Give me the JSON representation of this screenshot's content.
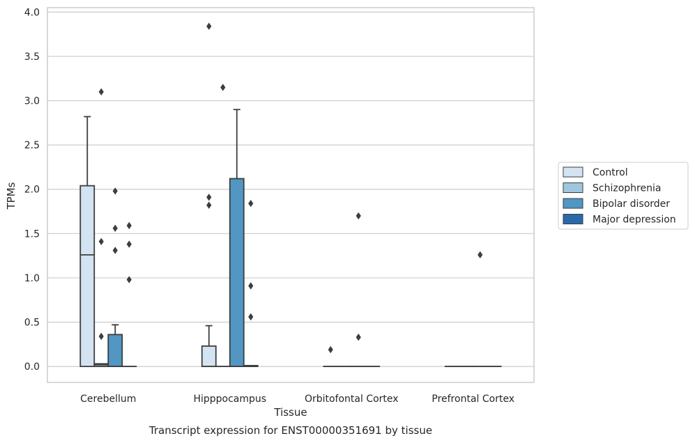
{
  "chart_data": {
    "type": "box",
    "xlabel": "Tissue",
    "ylabel": "TPMs",
    "caption": "Transcript expression for ENST00000351691 by tissue",
    "ylim": [
      -0.18,
      4.05
    ],
    "yticks": [
      0.0,
      0.5,
      1.0,
      1.5,
      2.0,
      2.5,
      3.0,
      3.5,
      4.0
    ],
    "ytick_labels": [
      "0.0",
      "0.5",
      "1.0",
      "1.5",
      "2.0",
      "2.5",
      "3.0",
      "3.5",
      "4.0"
    ],
    "grid": "y",
    "legend_position": "right",
    "categories": [
      "Cerebellum",
      "Hipppocampus",
      "Orbitofontal Cortex",
      "Prefrontal Cortex"
    ],
    "series": [
      {
        "name": "Control",
        "color": "#d3e3f2",
        "boxes": [
          {
            "q1": 0.0,
            "median": 1.26,
            "q3": 2.04,
            "whisker_low": 0.0,
            "whisker_high": 2.82,
            "outliers": []
          },
          {
            "q1": 0.0,
            "median": 0.0,
            "q3": 0.23,
            "whisker_low": 0.0,
            "whisker_high": 0.46,
            "outliers": [
              1.82,
              1.91,
              3.84
            ]
          },
          {
            "q1": 0.0,
            "median": 0.0,
            "q3": 0.0,
            "whisker_low": 0.0,
            "whisker_high": 0.0,
            "outliers": [
              0.19
            ]
          },
          {
            "q1": 0.0,
            "median": 0.0,
            "q3": 0.0,
            "whisker_low": 0.0,
            "whisker_high": 0.0,
            "outliers": []
          }
        ]
      },
      {
        "name": "Schizophrenia",
        "color": "#9ec6df",
        "boxes": [
          {
            "q1": 0.0,
            "median": 0.02,
            "q3": 0.03,
            "whisker_low": 0.0,
            "whisker_high": 0.03,
            "outliers": [
              0.34,
              1.41,
              3.1
            ]
          },
          {
            "q1": 0.0,
            "median": 0.0,
            "q3": 0.0,
            "whisker_low": 0.0,
            "whisker_high": 0.0,
            "outliers": [
              3.15
            ]
          },
          {
            "q1": 0.0,
            "median": 0.0,
            "q3": 0.0,
            "whisker_low": 0.0,
            "whisker_high": 0.0,
            "outliers": []
          },
          {
            "q1": 0.0,
            "median": 0.0,
            "q3": 0.0,
            "whisker_low": 0.0,
            "whisker_high": 0.0,
            "outliers": []
          }
        ]
      },
      {
        "name": "Bipolar disorder",
        "color": "#5296c4",
        "boxes": [
          {
            "q1": 0.0,
            "median": 0.0,
            "q3": 0.36,
            "whisker_low": 0.0,
            "whisker_high": 0.47,
            "outliers": [
              1.31,
              1.56,
              1.98
            ]
          },
          {
            "q1": 0.0,
            "median": 0.0,
            "q3": 2.12,
            "whisker_low": 0.0,
            "whisker_high": 2.9,
            "outliers": []
          },
          {
            "q1": 0.0,
            "median": 0.0,
            "q3": 0.0,
            "whisker_low": 0.0,
            "whisker_high": 0.0,
            "outliers": [
              0.33,
              1.7
            ]
          },
          {
            "q1": 0.0,
            "median": 0.0,
            "q3": 0.0,
            "whisker_low": 0.0,
            "whisker_high": 0.0,
            "outliers": [
              1.26
            ]
          }
        ]
      },
      {
        "name": "Major depression",
        "color": "#2a6aaa",
        "boxes": [
          {
            "q1": 0.0,
            "median": 0.0,
            "q3": 0.0,
            "whisker_low": 0.0,
            "whisker_high": 0.0,
            "outliers": [
              0.98,
              1.38,
              1.59
            ]
          },
          {
            "q1": 0.0,
            "median": 0.0,
            "q3": 0.01,
            "whisker_low": 0.0,
            "whisker_high": 0.01,
            "outliers": [
              0.56,
              0.91,
              1.84
            ]
          },
          {
            "q1": 0.0,
            "median": 0.0,
            "q3": 0.0,
            "whisker_low": 0.0,
            "whisker_high": 0.0,
            "outliers": []
          },
          {
            "q1": 0.0,
            "median": 0.0,
            "q3": 0.0,
            "whisker_low": 0.0,
            "whisker_high": 0.0,
            "outliers": []
          }
        ]
      }
    ]
  }
}
